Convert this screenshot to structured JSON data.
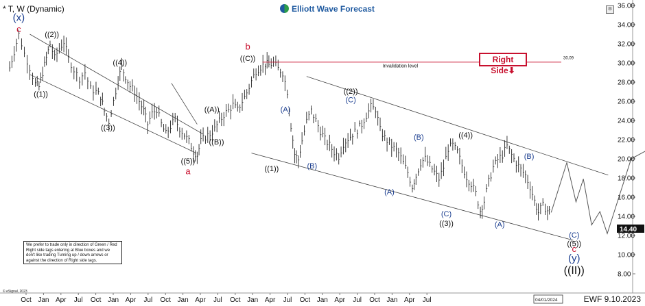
{
  "header": {
    "symbol": "* T, W (Dynamic)",
    "brand": "Elliott Wave Forecast",
    "brand_icon": "ewf-logo-icon",
    "settings_icon": "settings-icon"
  },
  "right_side_tag": {
    "label": "Right Side",
    "arrow": "⬇",
    "color": "#c8102e"
  },
  "invalidation": {
    "label": "Invalidation level",
    "value": "30.09"
  },
  "disclaimer": "We prefer to trade only in direction of Green / Red Right side tags entering at Blue boxes and we don't like trading Turning up / down arrows or against the direction of Right side tags.",
  "copyright": "© eSignal, 2023",
  "stamp": "EWF 9.10.2023",
  "date_box": "04/01/2024",
  "last_price": "14.40",
  "chart_data": {
    "type": "bar",
    "title": "* T, W (Dynamic)",
    "x_axis": {
      "ticks": [
        "Oct",
        "Jan",
        "Apr",
        "Jul",
        "Oct",
        "Jan",
        "Apr",
        "Jul",
        "Oct",
        "Jan",
        "Apr",
        "Jul",
        "Oct",
        "Jan",
        "Apr",
        "Jul",
        "Oct",
        "Jan",
        "Apr",
        "Jul",
        "Oct",
        "Jan",
        "Apr",
        "Jul"
      ]
    },
    "y_axis": {
      "position": "right",
      "ticks": [
        36.0,
        34.0,
        32.0,
        30.0,
        28.0,
        26.0,
        24.0,
        22.0,
        20.0,
        18.0,
        16.0,
        14.0,
        12.0,
        10.0,
        8.0
      ],
      "range": [
        7.5,
        36.0
      ]
    },
    "last_price": 14.4,
    "price_path": [
      [
        0.0,
        29.5
      ],
      [
        0.5,
        31.2
      ],
      [
        1.0,
        33.0
      ],
      [
        1.6,
        31.0
      ],
      [
        2.2,
        29.5
      ],
      [
        2.8,
        27.8
      ],
      [
        3.2,
        27.5
      ],
      [
        3.6,
        29.0
      ],
      [
        4.0,
        30.5
      ],
      [
        4.4,
        32.0
      ],
      [
        4.9,
        30.5
      ],
      [
        5.4,
        31.5
      ],
      [
        5.9,
        32.2
      ],
      [
        6.4,
        30.5
      ],
      [
        7.0,
        29.3
      ],
      [
        7.6,
        28.4
      ],
      [
        8.2,
        29.0
      ],
      [
        8.8,
        27.3
      ],
      [
        9.4,
        27.0
      ],
      [
        9.9,
        26.5
      ],
      [
        10.3,
        25.0
      ],
      [
        10.8,
        23.9
      ],
      [
        11.3,
        26.0
      ],
      [
        11.8,
        28.2
      ],
      [
        12.2,
        29.6
      ],
      [
        12.6,
        28.6
      ],
      [
        13.1,
        27.6
      ],
      [
        13.6,
        27.0
      ],
      [
        14.1,
        26.0
      ],
      [
        14.6,
        25.0
      ],
      [
        15.0,
        23.6
      ],
      [
        15.5,
        24.7
      ],
      [
        16.0,
        25.2
      ],
      [
        16.5,
        23.6
      ],
      [
        17.0,
        22.6
      ],
      [
        17.5,
        23.4
      ],
      [
        18.0,
        24.1
      ],
      [
        18.5,
        23.2
      ],
      [
        19.0,
        22.5
      ],
      [
        19.5,
        21.8
      ],
      [
        20.0,
        20.8
      ],
      [
        20.4,
        20.4
      ],
      [
        20.8,
        21.8
      ],
      [
        21.3,
        22.3
      ],
      [
        21.8,
        22.6
      ],
      [
        22.3,
        23.1
      ],
      [
        22.8,
        23.9
      ],
      [
        23.3,
        24.6
      ],
      [
        23.8,
        25.1
      ],
      [
        24.3,
        25.6
      ],
      [
        24.8,
        25.1
      ],
      [
        25.3,
        26.0
      ],
      [
        25.8,
        26.9
      ],
      [
        26.3,
        28.1
      ],
      [
        26.8,
        29.2
      ],
      [
        27.3,
        29.6
      ],
      [
        27.8,
        29.9
      ],
      [
        28.2,
        29.8
      ],
      [
        28.7,
        30.0
      ],
      [
        29.2,
        29.4
      ],
      [
        29.7,
        29.0
      ],
      [
        30.2,
        27.0
      ],
      [
        30.6,
        23.5
      ],
      [
        31.0,
        20.5
      ],
      [
        31.4,
        19.9
      ],
      [
        31.8,
        21.9
      ],
      [
        32.3,
        23.9
      ],
      [
        32.8,
        25.0
      ],
      [
        33.3,
        24.0
      ],
      [
        33.8,
        22.9
      ],
      [
        34.3,
        22.0
      ],
      [
        34.8,
        21.4
      ],
      [
        35.3,
        20.7
      ],
      [
        35.8,
        20.3
      ],
      [
        36.3,
        21.6
      ],
      [
        36.8,
        22.1
      ],
      [
        37.3,
        22.6
      ],
      [
        37.8,
        23.0
      ],
      [
        38.3,
        23.6
      ],
      [
        38.8,
        24.5
      ],
      [
        39.3,
        25.4
      ],
      [
        39.8,
        25.2
      ],
      [
        40.3,
        23.0
      ],
      [
        40.8,
        22.2
      ],
      [
        41.3,
        21.6
      ],
      [
        41.8,
        21.1
      ],
      [
        42.3,
        20.6
      ],
      [
        42.8,
        19.6
      ],
      [
        43.3,
        18.6
      ],
      [
        43.8,
        17.1
      ],
      [
        44.2,
        18.2
      ],
      [
        44.7,
        19.6
      ],
      [
        45.2,
        20.0
      ],
      [
        45.7,
        19.3
      ],
      [
        46.2,
        18.6
      ],
      [
        46.7,
        17.9
      ],
      [
        47.2,
        19.1
      ],
      [
        47.7,
        21.1
      ],
      [
        48.2,
        21.4
      ],
      [
        48.7,
        20.7
      ],
      [
        49.2,
        19.3
      ],
      [
        49.7,
        18.1
      ],
      [
        50.2,
        17.4
      ],
      [
        50.7,
        16.4
      ],
      [
        51.2,
        14.6
      ],
      [
        51.6,
        15.6
      ],
      [
        52.1,
        17.6
      ],
      [
        52.6,
        19.1
      ],
      [
        53.1,
        19.9
      ],
      [
        53.6,
        20.4
      ],
      [
        54.1,
        21.3
      ],
      [
        54.6,
        20.4
      ],
      [
        55.1,
        19.6
      ],
      [
        55.6,
        18.9
      ],
      [
        56.1,
        18.3
      ],
      [
        56.6,
        17.1
      ],
      [
        57.1,
        15.6
      ],
      [
        57.5,
        14.4
      ],
      [
        58.0,
        15.1
      ],
      [
        58.5,
        14.6
      ],
      [
        58.9,
        14.4
      ]
    ],
    "projection": [
      [
        58.9,
        14.4
      ],
      [
        60.6,
        19.6
      ],
      [
        61.6,
        15.5
      ],
      [
        62.4,
        17.9
      ],
      [
        63.3,
        13.1
      ],
      [
        64.2,
        14.5
      ],
      [
        65.0,
        12.2
      ],
      [
        67.6,
        20.0
      ],
      [
        69.9,
        21.2
      ]
    ],
    "channels": [
      {
        "from": [
          2.2,
          33.0
        ],
        "to": [
          21.0,
          22.6
        ]
      },
      {
        "from": [
          2.2,
          28.8
        ],
        "to": [
          20.3,
          20.6
        ]
      },
      {
        "from": [
          17.6,
          27.9
        ],
        "to": [
          20.4,
          23.6
        ]
      },
      {
        "from": [
          32.3,
          28.6
        ],
        "to": [
          65.1,
          18.3
        ]
      },
      {
        "from": [
          26.3,
          20.6
        ],
        "to": [
          61.3,
          11.5
        ]
      }
    ],
    "invalidation_level": {
      "value": 30.09,
      "from_x": 27.5,
      "to_x": 60.0
    },
    "wave_labels": [
      {
        "text": "(x)",
        "x": 1.0,
        "y": 34.4,
        "style": "xl-blue"
      },
      {
        "text": "c",
        "x": 1.0,
        "y": 33.2,
        "style": "red"
      },
      {
        "text": "((1))",
        "x": 3.4,
        "y": 26.5,
        "style": "black"
      },
      {
        "text": "((2))",
        "x": 4.6,
        "y": 32.7,
        "style": "black"
      },
      {
        "text": "((3))",
        "x": 10.7,
        "y": 23.0,
        "style": "black"
      },
      {
        "text": "((4))",
        "x": 12.0,
        "y": 29.8,
        "style": "black"
      },
      {
        "text": "((5))",
        "x": 19.4,
        "y": 19.5,
        "style": "black"
      },
      {
        "text": "a",
        "x": 19.4,
        "y": 18.4,
        "style": "red"
      },
      {
        "text": "((A))",
        "x": 22.0,
        "y": 24.9,
        "style": "black"
      },
      {
        "text": "((B))",
        "x": 22.5,
        "y": 21.5,
        "style": "black"
      },
      {
        "text": "b",
        "x": 25.9,
        "y": 31.4,
        "style": "red"
      },
      {
        "text": "((C))",
        "x": 25.9,
        "y": 30.2,
        "style": "black"
      },
      {
        "text": "((1))",
        "x": 28.5,
        "y": 18.7,
        "style": "black"
      },
      {
        "text": "(A)",
        "x": 30.0,
        "y": 24.9,
        "style": "blue"
      },
      {
        "text": "(B)",
        "x": 32.9,
        "y": 19.0,
        "style": "blue"
      },
      {
        "text": "((2))",
        "x": 37.1,
        "y": 26.8,
        "style": "black"
      },
      {
        "text": "(C)",
        "x": 37.1,
        "y": 25.9,
        "style": "blue"
      },
      {
        "text": "(A)",
        "x": 41.3,
        "y": 16.3,
        "style": "blue"
      },
      {
        "text": "(B)",
        "x": 44.5,
        "y": 22.0,
        "style": "blue"
      },
      {
        "text": "(C)",
        "x": 47.5,
        "y": 14.0,
        "style": "blue"
      },
      {
        "text": "((3))",
        "x": 47.5,
        "y": 13.0,
        "style": "black"
      },
      {
        "text": "((4))",
        "x": 49.6,
        "y": 22.2,
        "style": "black"
      },
      {
        "text": "(A)",
        "x": 53.3,
        "y": 12.9,
        "style": "blue"
      },
      {
        "text": "(B)",
        "x": 56.5,
        "y": 20.0,
        "style": "blue"
      },
      {
        "text": "(C)",
        "x": 61.4,
        "y": 11.8,
        "style": "blue"
      },
      {
        "text": "((5))",
        "x": 61.4,
        "y": 10.9,
        "style": "black"
      },
      {
        "text": "c",
        "x": 61.4,
        "y": 10.3,
        "style": "red"
      },
      {
        "text": "(y)",
        "x": 61.4,
        "y": 9.3,
        "style": "xl-blue"
      },
      {
        "text": "((II))",
        "x": 61.4,
        "y": 8.0,
        "style": "xxl-black"
      }
    ],
    "grid": false,
    "legend": "none"
  }
}
